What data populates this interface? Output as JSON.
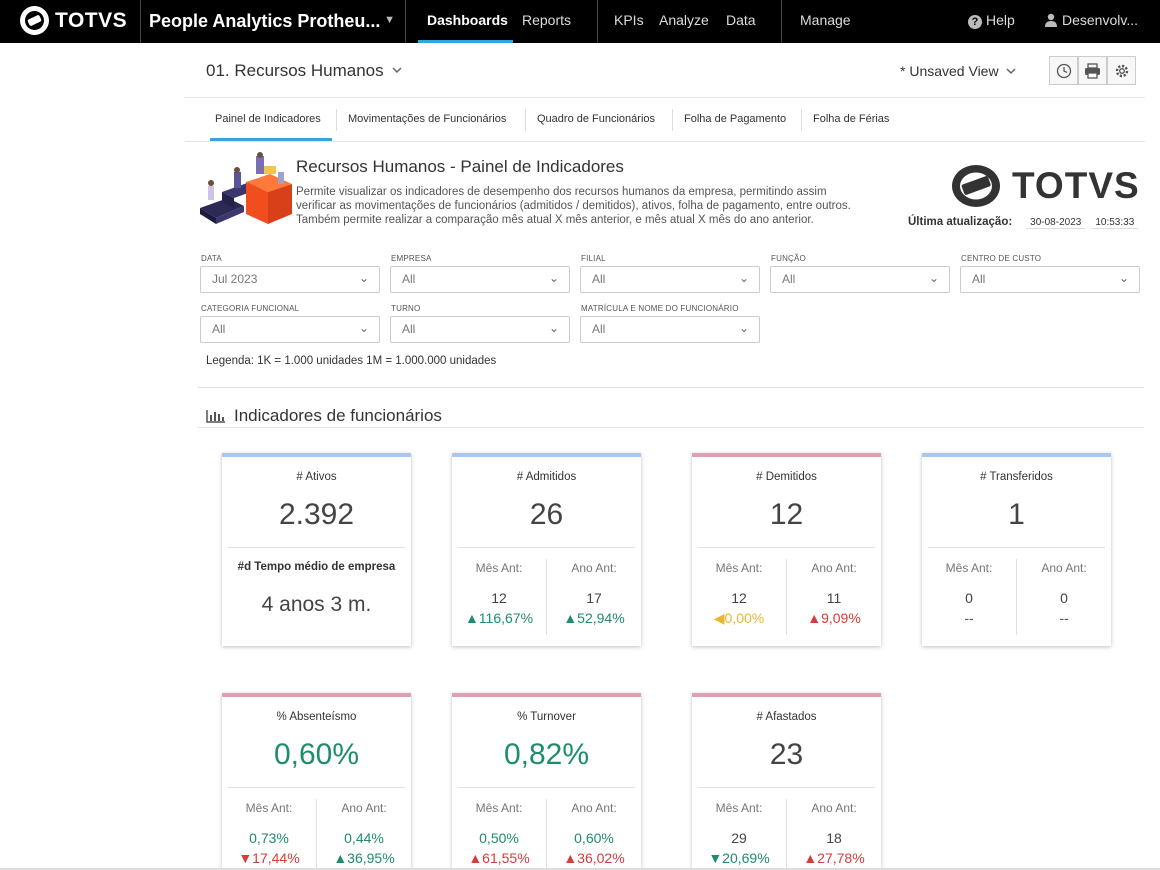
{
  "topbar": {
    "brand": "TOTVS",
    "app_name": "People Analytics Protheu...",
    "nav": [
      "Dashboards",
      "Reports",
      "KPIs",
      "Analyze",
      "Data",
      "Manage"
    ],
    "help": "Help",
    "user": "Desenvolv..."
  },
  "dashboard": {
    "title": "01. Recursos Humanos",
    "view": "* Unsaved View",
    "tabs": [
      "Painel de Indicadores",
      "Movimentações de Funcionários",
      "Quadro de Funcionários",
      "Folha de Pagamento",
      "Folha de Férias"
    ]
  },
  "hero": {
    "title": "Recursos Humanos - Painel de Indicadores",
    "desc_lines": [
      "Permite visualizar os indicadores de desempenho dos recursos humanos da empresa, permitindo assim",
      "verificar as movimentações de funcionários (admitidos / demitidos), ativos, folha de pagamento, entre outros.",
      "Também permite realizar a comparação mês atual X mês anterior, e mês atual X mês do ano anterior."
    ],
    "brand": "TOTVS",
    "update_label": "Última atualização:",
    "update_date": "30-08-2023",
    "update_time": "10:53:33"
  },
  "filters": [
    {
      "label": "Data",
      "value": "Jul 2023"
    },
    {
      "label": "Empresa",
      "value": "All"
    },
    {
      "label": "Filial",
      "value": "All"
    },
    {
      "label": "Função",
      "value": "All"
    },
    {
      "label": "Centro de Custo",
      "value": "All"
    },
    {
      "label": "Categoria Funcional",
      "value": "All"
    },
    {
      "label": "Turno",
      "value": "All"
    },
    {
      "label": "Matrícula e Nome do Funcionário",
      "value": "All"
    }
  ],
  "legend": "Legenda: 1K = 1.000 unidades 1M = 1.000.000 unidades",
  "section_title": "Indicadores de funcionários",
  "colors": {
    "blue_bar": "#a9c8f0",
    "pink_bar": "#dba2b0",
    "green": "#1e8c6e",
    "red": "#d93a3a",
    "yellow": "#e8b830",
    "accent": "#34a4dc"
  },
  "cards": {
    "ativos": {
      "title": "# Ativos",
      "value": "2.392",
      "sub_title": "#d Tempo médio de empresa",
      "sub_value": "4 anos 3 m."
    },
    "admitidos": {
      "title": "# Admitidos",
      "value": "26",
      "prev_label": "Mês Ant:",
      "year_label": "Ano Ant:",
      "prev_value": "12",
      "prev_pct": "▲116,67%",
      "year_value": "17",
      "year_pct": "▲52,94%"
    },
    "demitidos": {
      "title": "# Demitidos",
      "value": "12",
      "prev_label": "Mês Ant:",
      "year_label": "Ano Ant:",
      "prev_value": "12",
      "prev_pct": "◀0,00%",
      "year_value": "11",
      "year_pct": "▲9,09%"
    },
    "transferidos": {
      "title": "# Transferidos",
      "value": "1",
      "prev_label": "Mês Ant:",
      "year_label": "Ano Ant:",
      "prev_value": "0",
      "prev_pct": "--",
      "year_value": "0",
      "year_pct": "--"
    },
    "absenteismo": {
      "title": "% Absenteísmo",
      "value": "0,60%",
      "prev_label": "Mês Ant:",
      "year_label": "Ano Ant:",
      "prev_value": "0,73%",
      "prev_pct": "▼17,44%",
      "year_value": "0,44%",
      "year_pct": "▲36,95%"
    },
    "turnover": {
      "title": "% Turnover",
      "value": "0,82%",
      "prev_label": "Mês Ant:",
      "year_label": "Ano Ant:",
      "prev_value": "0,50%",
      "prev_pct": "▲61,55%",
      "year_value": "0,60%",
      "year_pct": "▲36,02%"
    },
    "afastados": {
      "title": "# Afastados",
      "value": "23",
      "prev_label": "Mês Ant:",
      "year_label": "Ano Ant:",
      "prev_value": "29",
      "prev_pct": "▼20,69%",
      "year_value": "18",
      "year_pct": "▲27,78%"
    }
  }
}
